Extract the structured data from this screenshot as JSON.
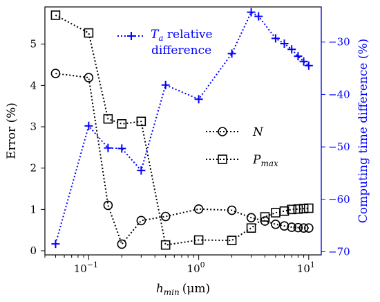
{
  "chart_data": {
    "type": "line",
    "xlabel": "h_min (μm)",
    "xlabel_main": "h",
    "xlabel_sub": "min",
    "xlabel_unit": "(μm)",
    "ylabel": "Error (%)",
    "y2label": "Computing time difference (%)",
    "xscale": "log",
    "xlim": [
      0.04,
      13
    ],
    "ylim": [
      -0.1,
      5.9
    ],
    "y2lim": [
      -70.6,
      -23.3
    ],
    "xticks": [
      0.1,
      1,
      10
    ],
    "xtick_labels": [
      "10",
      "10",
      "10"
    ],
    "xtick_exponents": [
      "−1",
      "0",
      "1"
    ],
    "yticks": [
      0,
      1,
      2,
      3,
      4,
      5
    ],
    "ytick_labels": [
      "0",
      "1",
      "2",
      "3",
      "4",
      "5"
    ],
    "y2ticks": [
      -70,
      -60,
      -50,
      -40,
      -30
    ],
    "y2tick_labels": [
      "−70",
      "−60",
      "−50",
      "−40",
      "−30"
    ],
    "grid": false,
    "colors": {
      "left_axis": "#000000",
      "right_axis": "#0000ff"
    },
    "series": [
      {
        "name": "N",
        "axis": "left",
        "marker": "circle",
        "line": "dotted",
        "color": "#000000",
        "x": [
          0.05,
          0.1,
          0.15,
          0.2,
          0.3,
          0.5,
          1,
          2,
          3,
          4,
          5,
          6,
          7,
          8,
          9,
          10
        ],
        "y": [
          4.29,
          4.19,
          1.1,
          0.16,
          0.73,
          0.83,
          1.01,
          0.98,
          0.8,
          0.72,
          0.64,
          0.6,
          0.57,
          0.56,
          0.55,
          0.55
        ]
      },
      {
        "name": "P_max",
        "axis": "left",
        "marker": "square",
        "line": "dotted",
        "color": "#000000",
        "x": [
          0.05,
          0.1,
          0.15,
          0.2,
          0.3,
          0.5,
          1,
          2,
          3,
          4,
          5,
          6,
          7,
          8,
          9,
          10
        ],
        "y": [
          5.7,
          5.27,
          3.19,
          3.07,
          3.13,
          0.14,
          0.26,
          0.25,
          0.55,
          0.82,
          0.92,
          0.96,
          1.0,
          1.01,
          1.02,
          1.03
        ]
      },
      {
        "name": "T_a relative difference",
        "axis": "right",
        "marker": "plus",
        "line": "dotted",
        "color": "#0000ff",
        "x": [
          0.05,
          0.1,
          0.15,
          0.2,
          0.3,
          0.5,
          1,
          2,
          3,
          3.5,
          5,
          6,
          7,
          8,
          9,
          10
        ],
        "y": [
          -68.5,
          -46.0,
          -50.2,
          -50.3,
          -54.5,
          -38.2,
          -40.9,
          -32.2,
          -24.3,
          -25.1,
          -29.3,
          -30.3,
          -31.4,
          -32.7,
          -33.7,
          -34.5
        ]
      }
    ],
    "legend": {
      "left_entries": [
        {
          "main": "N",
          "sub": ""
        },
        {
          "main": "P",
          "sub": "max"
        }
      ],
      "right_entry": {
        "main": "T",
        "sub": "a",
        "line1_rest": " relative",
        "line2": "difference"
      }
    }
  }
}
